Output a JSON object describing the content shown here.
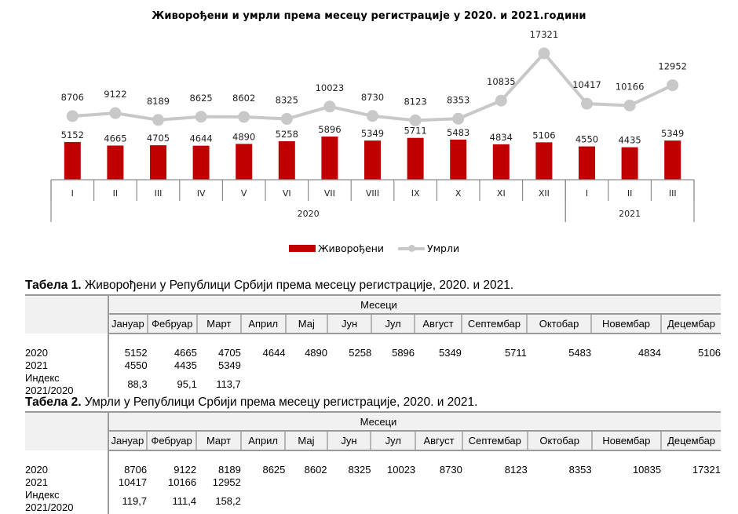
{
  "chart_data": {
    "type": "bar+line",
    "title": "Живорођени и умрли према месецу регистрације у 2020. и 2021.години",
    "categories": [
      "I",
      "II",
      "III",
      "IV",
      "V",
      "VI",
      "VII",
      "VIII",
      "IX",
      "X",
      "XI",
      "XII",
      "I",
      "II",
      "III"
    ],
    "groups": [
      {
        "label": "2020",
        "span": 12
      },
      {
        "label": "2021",
        "span": 3
      }
    ],
    "series": [
      {
        "name": "Живорођени",
        "type": "bar",
        "color": "#c00000",
        "values": [
          5152,
          4665,
          4705,
          4644,
          4890,
          5258,
          5896,
          5349,
          5711,
          5483,
          4834,
          5106,
          4550,
          4435,
          5349
        ]
      },
      {
        "name": "Умрли",
        "type": "line",
        "color": "#c8c8c8",
        "values": [
          8706,
          9122,
          8189,
          8625,
          8602,
          8325,
          10023,
          8730,
          8123,
          8353,
          10835,
          17321,
          10417,
          10166,
          12952
        ]
      }
    ],
    "xlabel": "",
    "ylabel": "",
    "grid": false,
    "legend_position": "bottom"
  },
  "legend": {
    "births": "Живорођени",
    "deaths": "Умрли"
  },
  "table1": {
    "caption_bold": "Табела 1.",
    "caption": " Живорођени у Републици Србији према месецу регистрације, 2020. и 2021.",
    "group_header": "Месеци",
    "months": [
      "Јануар",
      "Фебруар",
      "Март",
      "Април",
      "Мај",
      "Јун",
      "Јул",
      "Август",
      "Септембар",
      "Октобар",
      "Новембар",
      "Децембар"
    ],
    "rows": [
      {
        "label": "2020",
        "values": [
          "5152",
          "4665",
          "4705",
          "4644",
          "4890",
          "5258",
          "5896",
          "5349",
          "5711",
          "5483",
          "4834",
          "5106"
        ]
      },
      {
        "label": "2021",
        "values": [
          "4550",
          "4435",
          "5349",
          "",
          "",
          "",
          "",
          "",
          "",
          "",
          "",
          ""
        ]
      },
      {
        "label": "Индекс 2021/2020",
        "values": [
          "88,3",
          "95,1",
          "113,7",
          "",
          "",
          "",
          "",
          "",
          "",
          "",
          "",
          ""
        ]
      }
    ]
  },
  "table2": {
    "caption_bold": "Табела 2.",
    "caption": " Умрли у Републици Србији према месецу регистрације, 2020. и 2021.",
    "group_header": "Месеци",
    "months": [
      "Јануар",
      "Фебруар",
      "Март",
      "Април",
      "Мај",
      "Јун",
      "Јул",
      "Август",
      "Септембар",
      "Октобар",
      "Новембар",
      "Децембар"
    ],
    "rows": [
      {
        "label": "2020",
        "values": [
          "8706",
          "9122",
          "8189",
          "8625",
          "8602",
          "8325",
          "10023",
          "8730",
          "8123",
          "8353",
          "10835",
          "17321"
        ]
      },
      {
        "label": "2021",
        "values": [
          "10417",
          "10166",
          "12952",
          "",
          "",
          "",
          "",
          "",
          "",
          "",
          "",
          ""
        ]
      },
      {
        "label": "Индекс 2021/2020",
        "values": [
          "119,7",
          "111,4",
          "158,2",
          "",
          "",
          "",
          "",
          "",
          "",
          "",
          "",
          ""
        ]
      }
    ]
  }
}
